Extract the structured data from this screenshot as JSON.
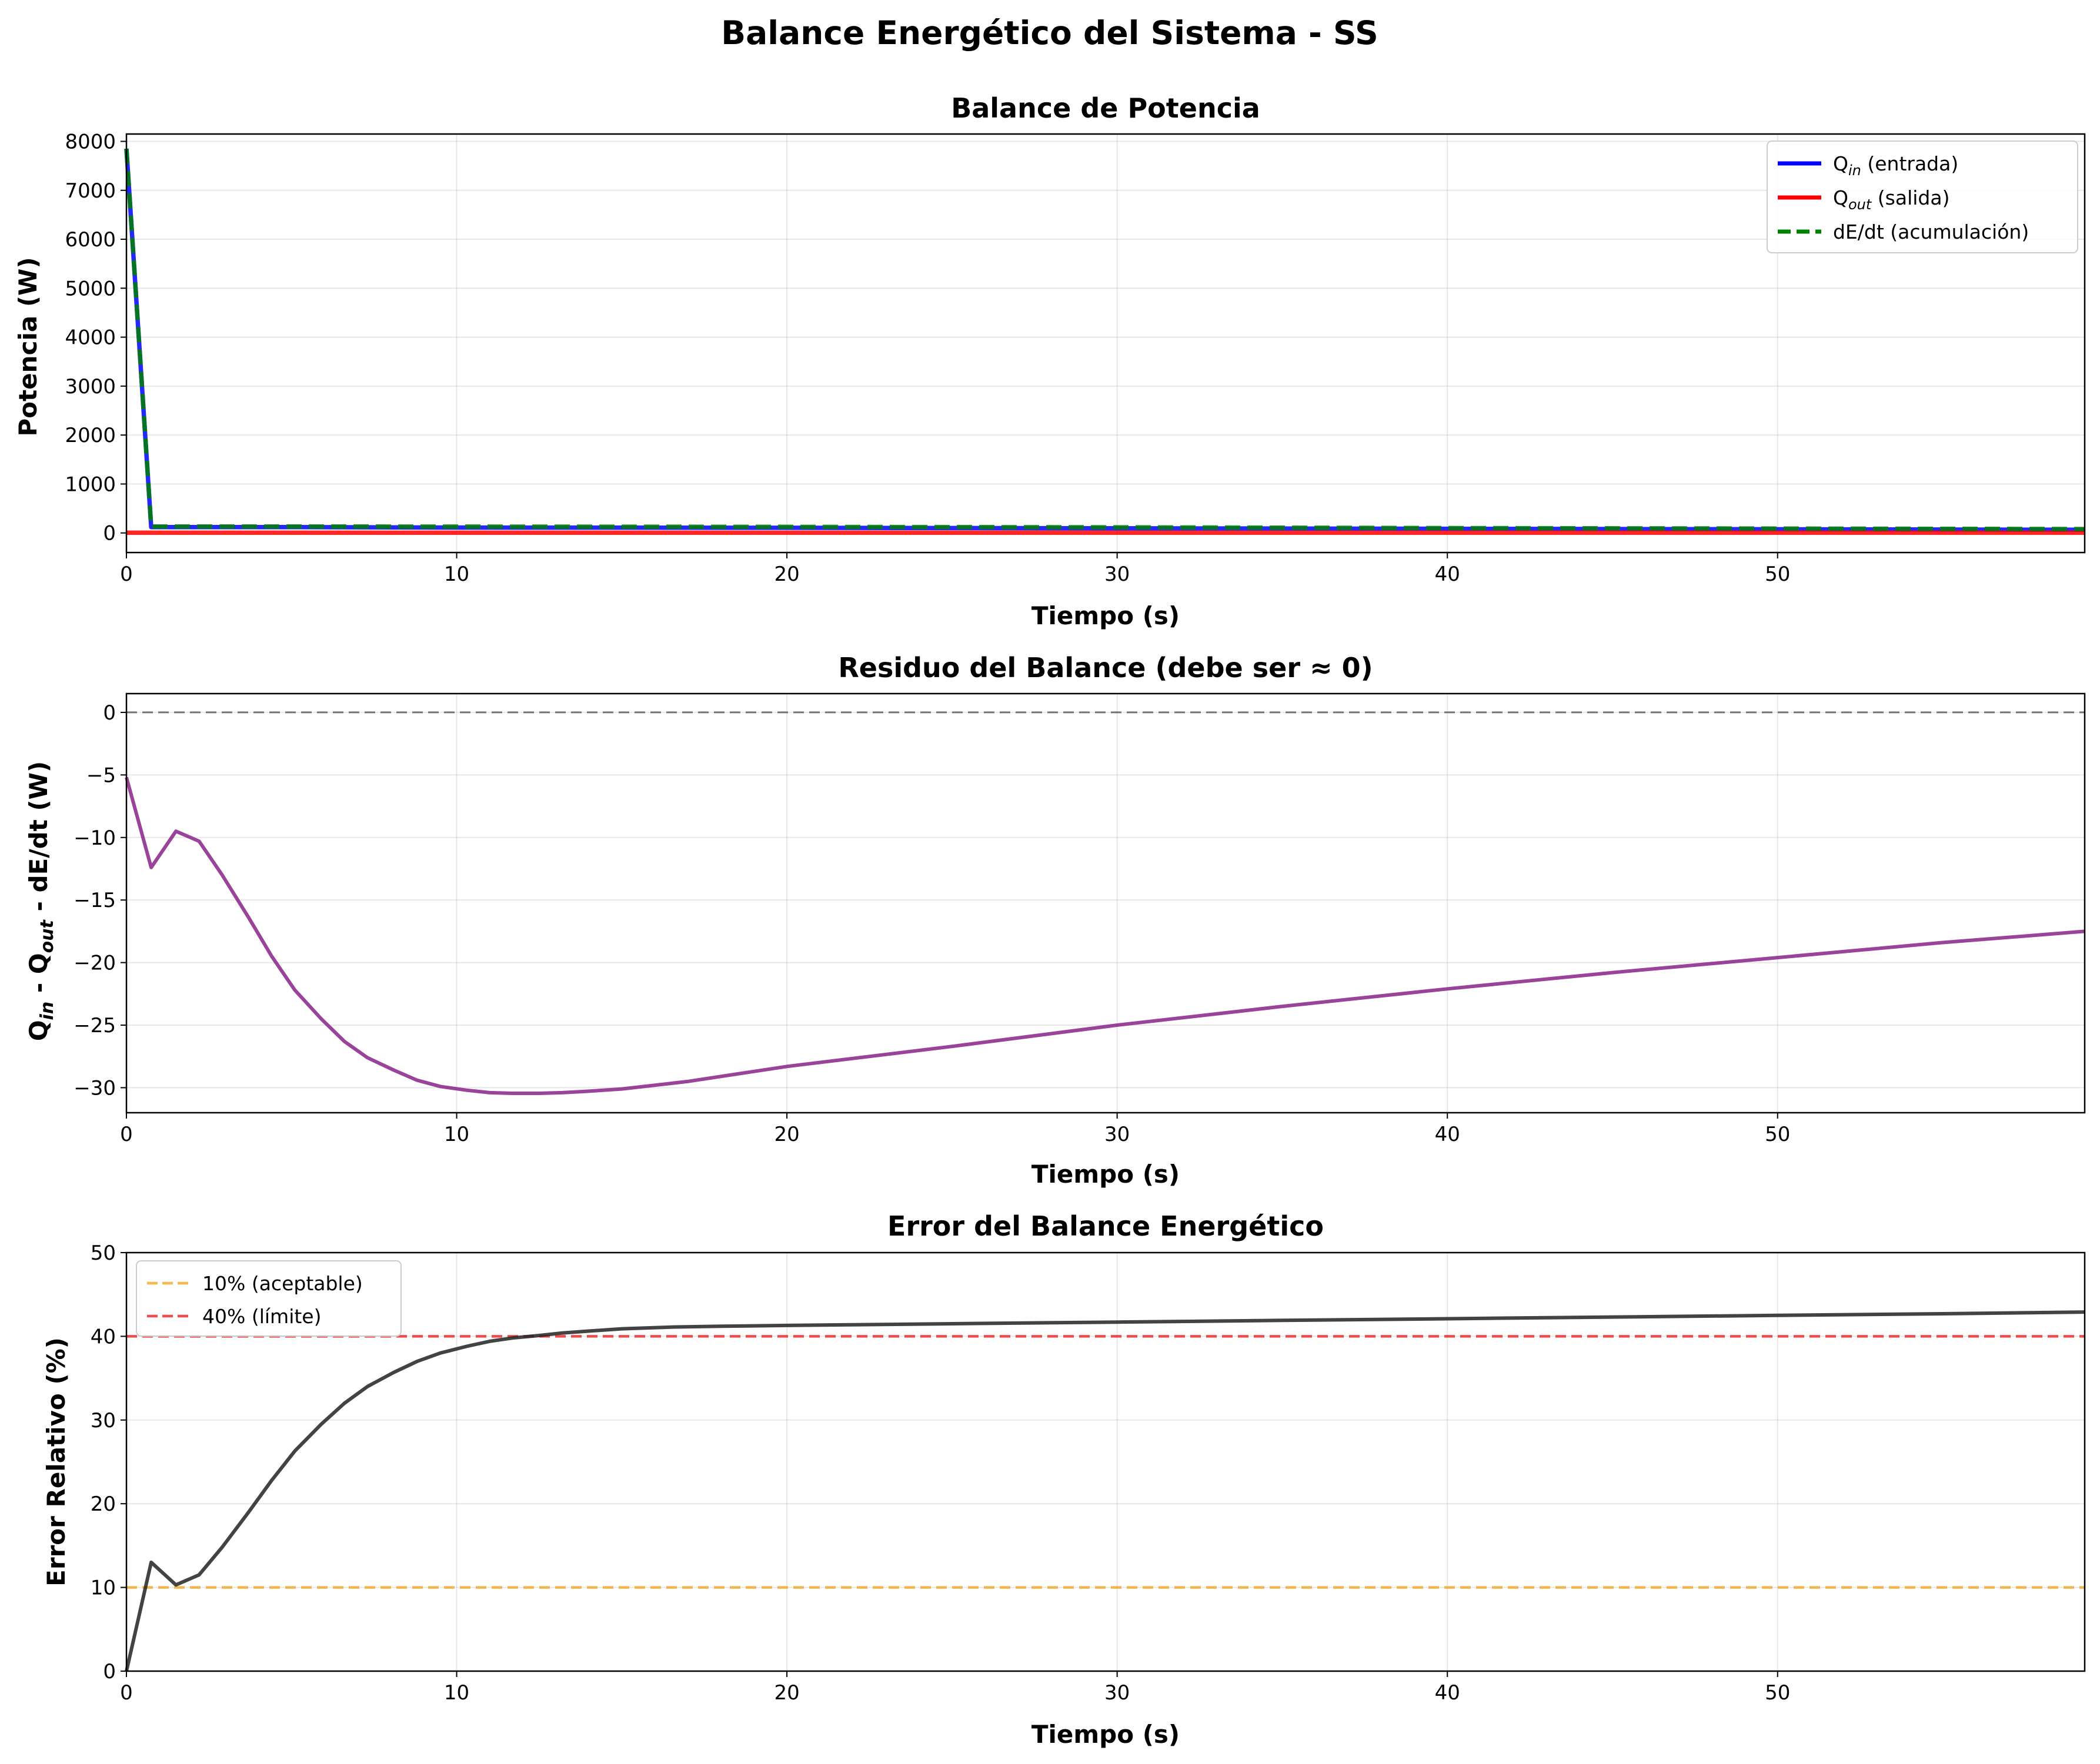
{
  "chart_data": {
    "title": "Balance Energético del Sistema - SS",
    "panels": [
      {
        "type": "line",
        "title": "Balance de Potencia",
        "xlabel": "Tiempo (s)",
        "ylabel": "Potencia (W)",
        "xlim": [
          0,
          59.3
        ],
        "ylim": [
          -400,
          8150
        ],
        "xticks": [
          0,
          10,
          20,
          30,
          40,
          50
        ],
        "yticks": [
          0,
          1000,
          2000,
          3000,
          4000,
          5000,
          6000,
          7000,
          8000
        ],
        "grid": true,
        "legend": "top-right",
        "series": [
          {
            "name": "Q_in (entrada)",
            "color": "#0000ff",
            "style": "solid",
            "x": [
              0,
              0.75,
              5,
              10,
              20,
              30,
              40,
              50,
              59.3
            ],
            "y": [
              7850,
              120,
              120,
              110,
              105,
              95,
              85,
              75,
              65
            ]
          },
          {
            "name": "Q_out (salida)",
            "color": "#ff0000",
            "style": "solid",
            "x": [
              0,
              59.3
            ],
            "y": [
              5,
              5
            ]
          },
          {
            "name": "dE/dt (acumulación)",
            "color": "#008000",
            "style": "dashed",
            "x": [
              0,
              0.75,
              5,
              10,
              20,
              30,
              40,
              50,
              59.3
            ],
            "y": [
              7850,
              132,
              132,
              130,
              125,
              115,
              100,
              90,
              80
            ]
          }
        ]
      },
      {
        "type": "line",
        "title": "Residuo del Balance (debe ser ≈ 0)",
        "xlabel": "Tiempo (s)",
        "ylabel": "Q_in - Q_out - dE/dt (W)",
        "xlim": [
          0,
          59.3
        ],
        "ylim": [
          -32,
          1.5
        ],
        "xticks": [
          0,
          10,
          20,
          30,
          40,
          50
        ],
        "yticks": [
          0,
          -5,
          -10,
          -15,
          -20,
          -25,
          -30
        ],
        "grid": true,
        "reference_lines": [
          {
            "y": 0,
            "color": "#555555",
            "style": "dashed"
          }
        ],
        "series": [
          {
            "name": "",
            "color": "#882288",
            "style": "solid",
            "x": [
              0,
              0.75,
              1.5,
              2.2,
              2.9,
              3.7,
              4.4,
              5.1,
              5.9,
              6.6,
              7.3,
              8.1,
              8.8,
              9.5,
              10.3,
              11,
              11.7,
              12.5,
              13.2,
              13.9,
              15,
              17,
              20,
              25,
              30,
              35,
              40,
              45,
              50,
              55,
              59.3
            ],
            "y": [
              -5.2,
              -12.4,
              -9.5,
              -10.3,
              -13,
              -16.4,
              -19.5,
              -22.2,
              -24.5,
              -26.3,
              -27.6,
              -28.6,
              -29.4,
              -29.9,
              -30.2,
              -30.4,
              -30.45,
              -30.45,
              -30.4,
              -30.3,
              -30.1,
              -29.5,
              -28.3,
              -26.7,
              -25,
              -23.5,
              -22.1,
              -20.8,
              -19.6,
              -18.4,
              -17.5
            ]
          }
        ]
      },
      {
        "type": "line",
        "title": "Error del Balance Energético",
        "xlabel": "Tiempo (s)",
        "ylabel": "Error Relativo (%)",
        "xlim": [
          0,
          59.3
        ],
        "ylim": [
          0,
          50
        ],
        "xticks": [
          0,
          10,
          20,
          30,
          40,
          50
        ],
        "yticks": [
          0,
          10,
          20,
          30,
          40,
          50
        ],
        "grid": true,
        "legend": "top-left",
        "reference_lines": [
          {
            "y": 10,
            "name": "10% (aceptable)",
            "color": "#f5a623",
            "style": "dashed"
          },
          {
            "y": 40,
            "name": "40% (límite)",
            "color": "#ee2222",
            "style": "dashed"
          }
        ],
        "series": [
          {
            "name": "",
            "color": "#222222",
            "style": "solid",
            "x": [
              0,
              0.75,
              1.5,
              2.2,
              2.9,
              3.7,
              4.4,
              5.1,
              5.9,
              6.6,
              7.3,
              8.1,
              8.8,
              9.5,
              10.3,
              11,
              11.7,
              12.5,
              13.2,
              13.9,
              15,
              16.5,
              18,
              20,
              25,
              30,
              35,
              40,
              45,
              50,
              55,
              59.3
            ],
            "y": [
              0,
              13,
              10.3,
              11.5,
              14.8,
              19,
              22.8,
              26.3,
              29.5,
              32,
              34,
              35.7,
              37,
              38,
              38.8,
              39.4,
              39.8,
              40.1,
              40.4,
              40.6,
              40.9,
              41.1,
              41.2,
              41.3,
              41.5,
              41.7,
              41.9,
              42.1,
              42.3,
              42.5,
              42.7,
              42.9
            ]
          }
        ]
      }
    ]
  },
  "legend_top": {
    "qin": "Q",
    "qin_sub": "in",
    "qin_rest": " (entrada)",
    "qout": "Q",
    "qout_sub": "out",
    "qout_rest": " (salida)",
    "dedt": "dE/dt (acumulación)"
  },
  "legend_bottom": {
    "ref10": "10% (aceptable)",
    "ref40": "40% (límite)"
  },
  "ylabel_mid": {
    "a": "Q",
    "a_sub": "in",
    "b": " - Q",
    "b_sub": "out",
    "c": " - dE/dt (W)"
  }
}
